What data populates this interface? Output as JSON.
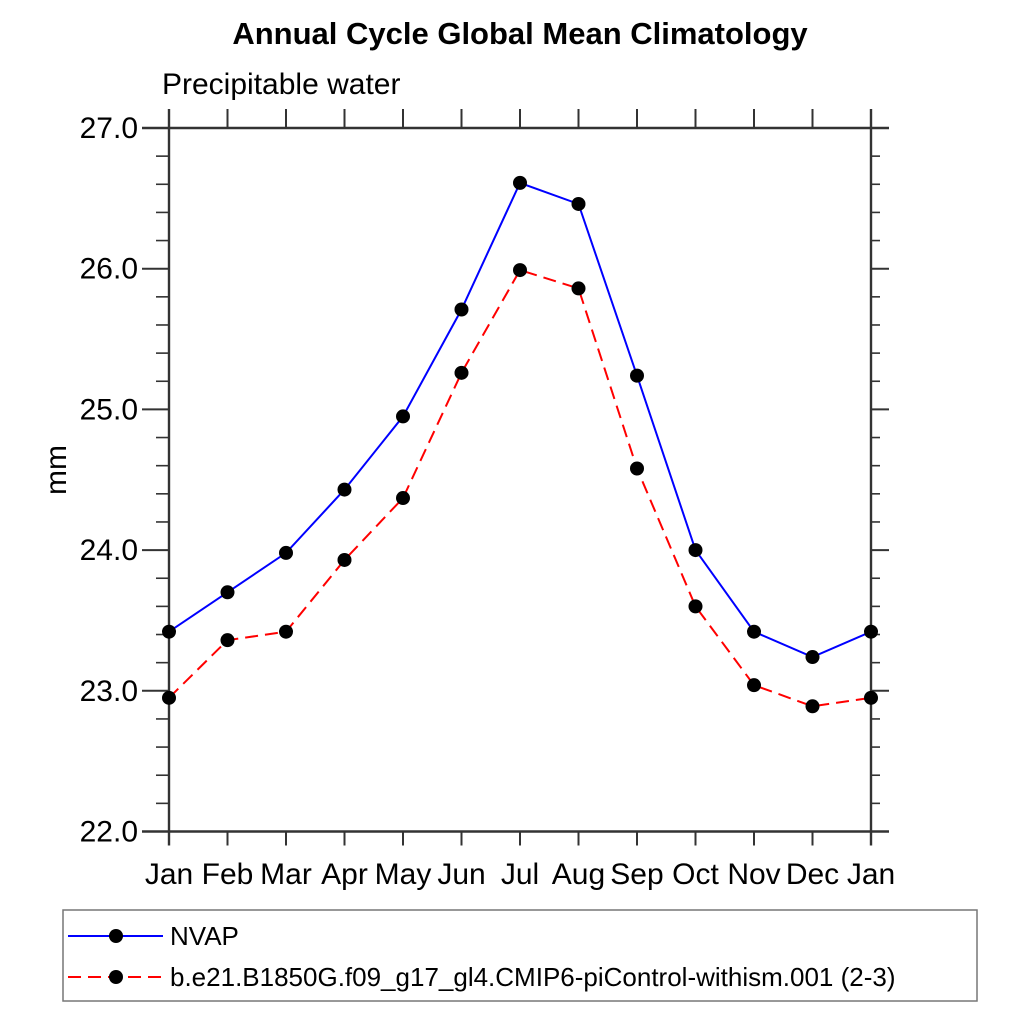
{
  "chart_data": {
    "type": "line",
    "title": "Annual Cycle Global Mean Climatology",
    "subtitle": "Precipitable water",
    "ylabel": "mm",
    "x_categories": [
      "Jan",
      "Feb",
      "Mar",
      "Apr",
      "May",
      "Jun",
      "Jul",
      "Aug",
      "Sep",
      "Oct",
      "Nov",
      "Dec",
      "Jan"
    ],
    "ylim": [
      22.0,
      27.0
    ],
    "ytick_values": [
      22,
      23,
      24,
      25,
      26,
      27
    ],
    "ytick_labels": [
      "22.0",
      "23.0",
      "24.0",
      "25.0",
      "26.0",
      "27.0"
    ],
    "y_minor_step": 0.2,
    "grid": false,
    "legend_position": "bottom-left-box",
    "axis_color": "#333333",
    "series": [
      {
        "name": "NVAP",
        "color": "#0000ff",
        "line_style": "solid",
        "marker": "filled-circle",
        "marker_color": "#000000",
        "values": [
          23.42,
          23.7,
          23.98,
          24.43,
          24.95,
          25.71,
          26.61,
          26.46,
          25.24,
          24.0,
          23.42,
          23.24,
          23.42
        ]
      },
      {
        "name": "b.e21.B1850G.f09_g17_gl4.CMIP6-piControl-withism.001 (2-3)",
        "color": "#ff0000",
        "line_style": "dashed",
        "marker": "filled-circle",
        "marker_color": "#000000",
        "values": [
          22.95,
          23.36,
          23.42,
          23.93,
          24.37,
          25.26,
          25.99,
          25.86,
          24.58,
          23.6,
          23.04,
          22.89,
          22.95
        ]
      }
    ]
  }
}
